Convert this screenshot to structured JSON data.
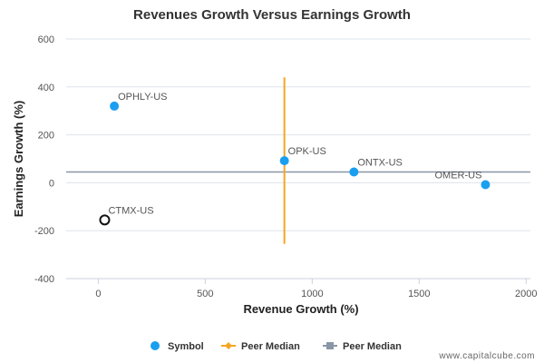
{
  "chart_data": {
    "type": "scatter",
    "title": "Revenues Growth Versus Earnings Growth",
    "xlabel": "Revenue Growth (%)",
    "ylabel": "Earnings Growth (%)",
    "xlim": [
      -150,
      2020
    ],
    "ylim": [
      -400,
      600
    ],
    "x_ticks": [
      0,
      500,
      1000,
      1500,
      2000
    ],
    "y_ticks": [
      -400,
      -200,
      0,
      200,
      400,
      600
    ],
    "grid": "horizontal",
    "points": [
      {
        "label": "OPHLY-US",
        "x": 75,
        "y": 320,
        "style": "filled"
      },
      {
        "label": "OPK-US",
        "x": 870,
        "y": 92,
        "style": "filled"
      },
      {
        "label": "ONTX-US",
        "x": 1195,
        "y": 45,
        "style": "filled"
      },
      {
        "label": "OMER-US",
        "x": 1810,
        "y": -8,
        "style": "filled"
      },
      {
        "label": "CTMX-US",
        "x": 30,
        "y": -155,
        "style": "hollow"
      }
    ],
    "peer_median_x": 870,
    "peer_median_y": 45,
    "peer_median_x_span": [
      -255,
      440
    ],
    "legend": [
      {
        "name": "Symbol",
        "marker": "circle",
        "color": "#1a9ff0"
      },
      {
        "name": "Peer Median",
        "marker": "diamond",
        "color": "#f5a623"
      },
      {
        "name": "Peer Median",
        "marker": "square",
        "color": "#8a96a8"
      }
    ],
    "legend_position": "bottom-center",
    "colors": {
      "point": "#1a9ff0",
      "vertical_median": "#f5a623",
      "horizontal_median": "#8a96a8",
      "grid": "#dde3ea"
    }
  },
  "footer": {
    "watermark": "www.capitalcube.com"
  }
}
